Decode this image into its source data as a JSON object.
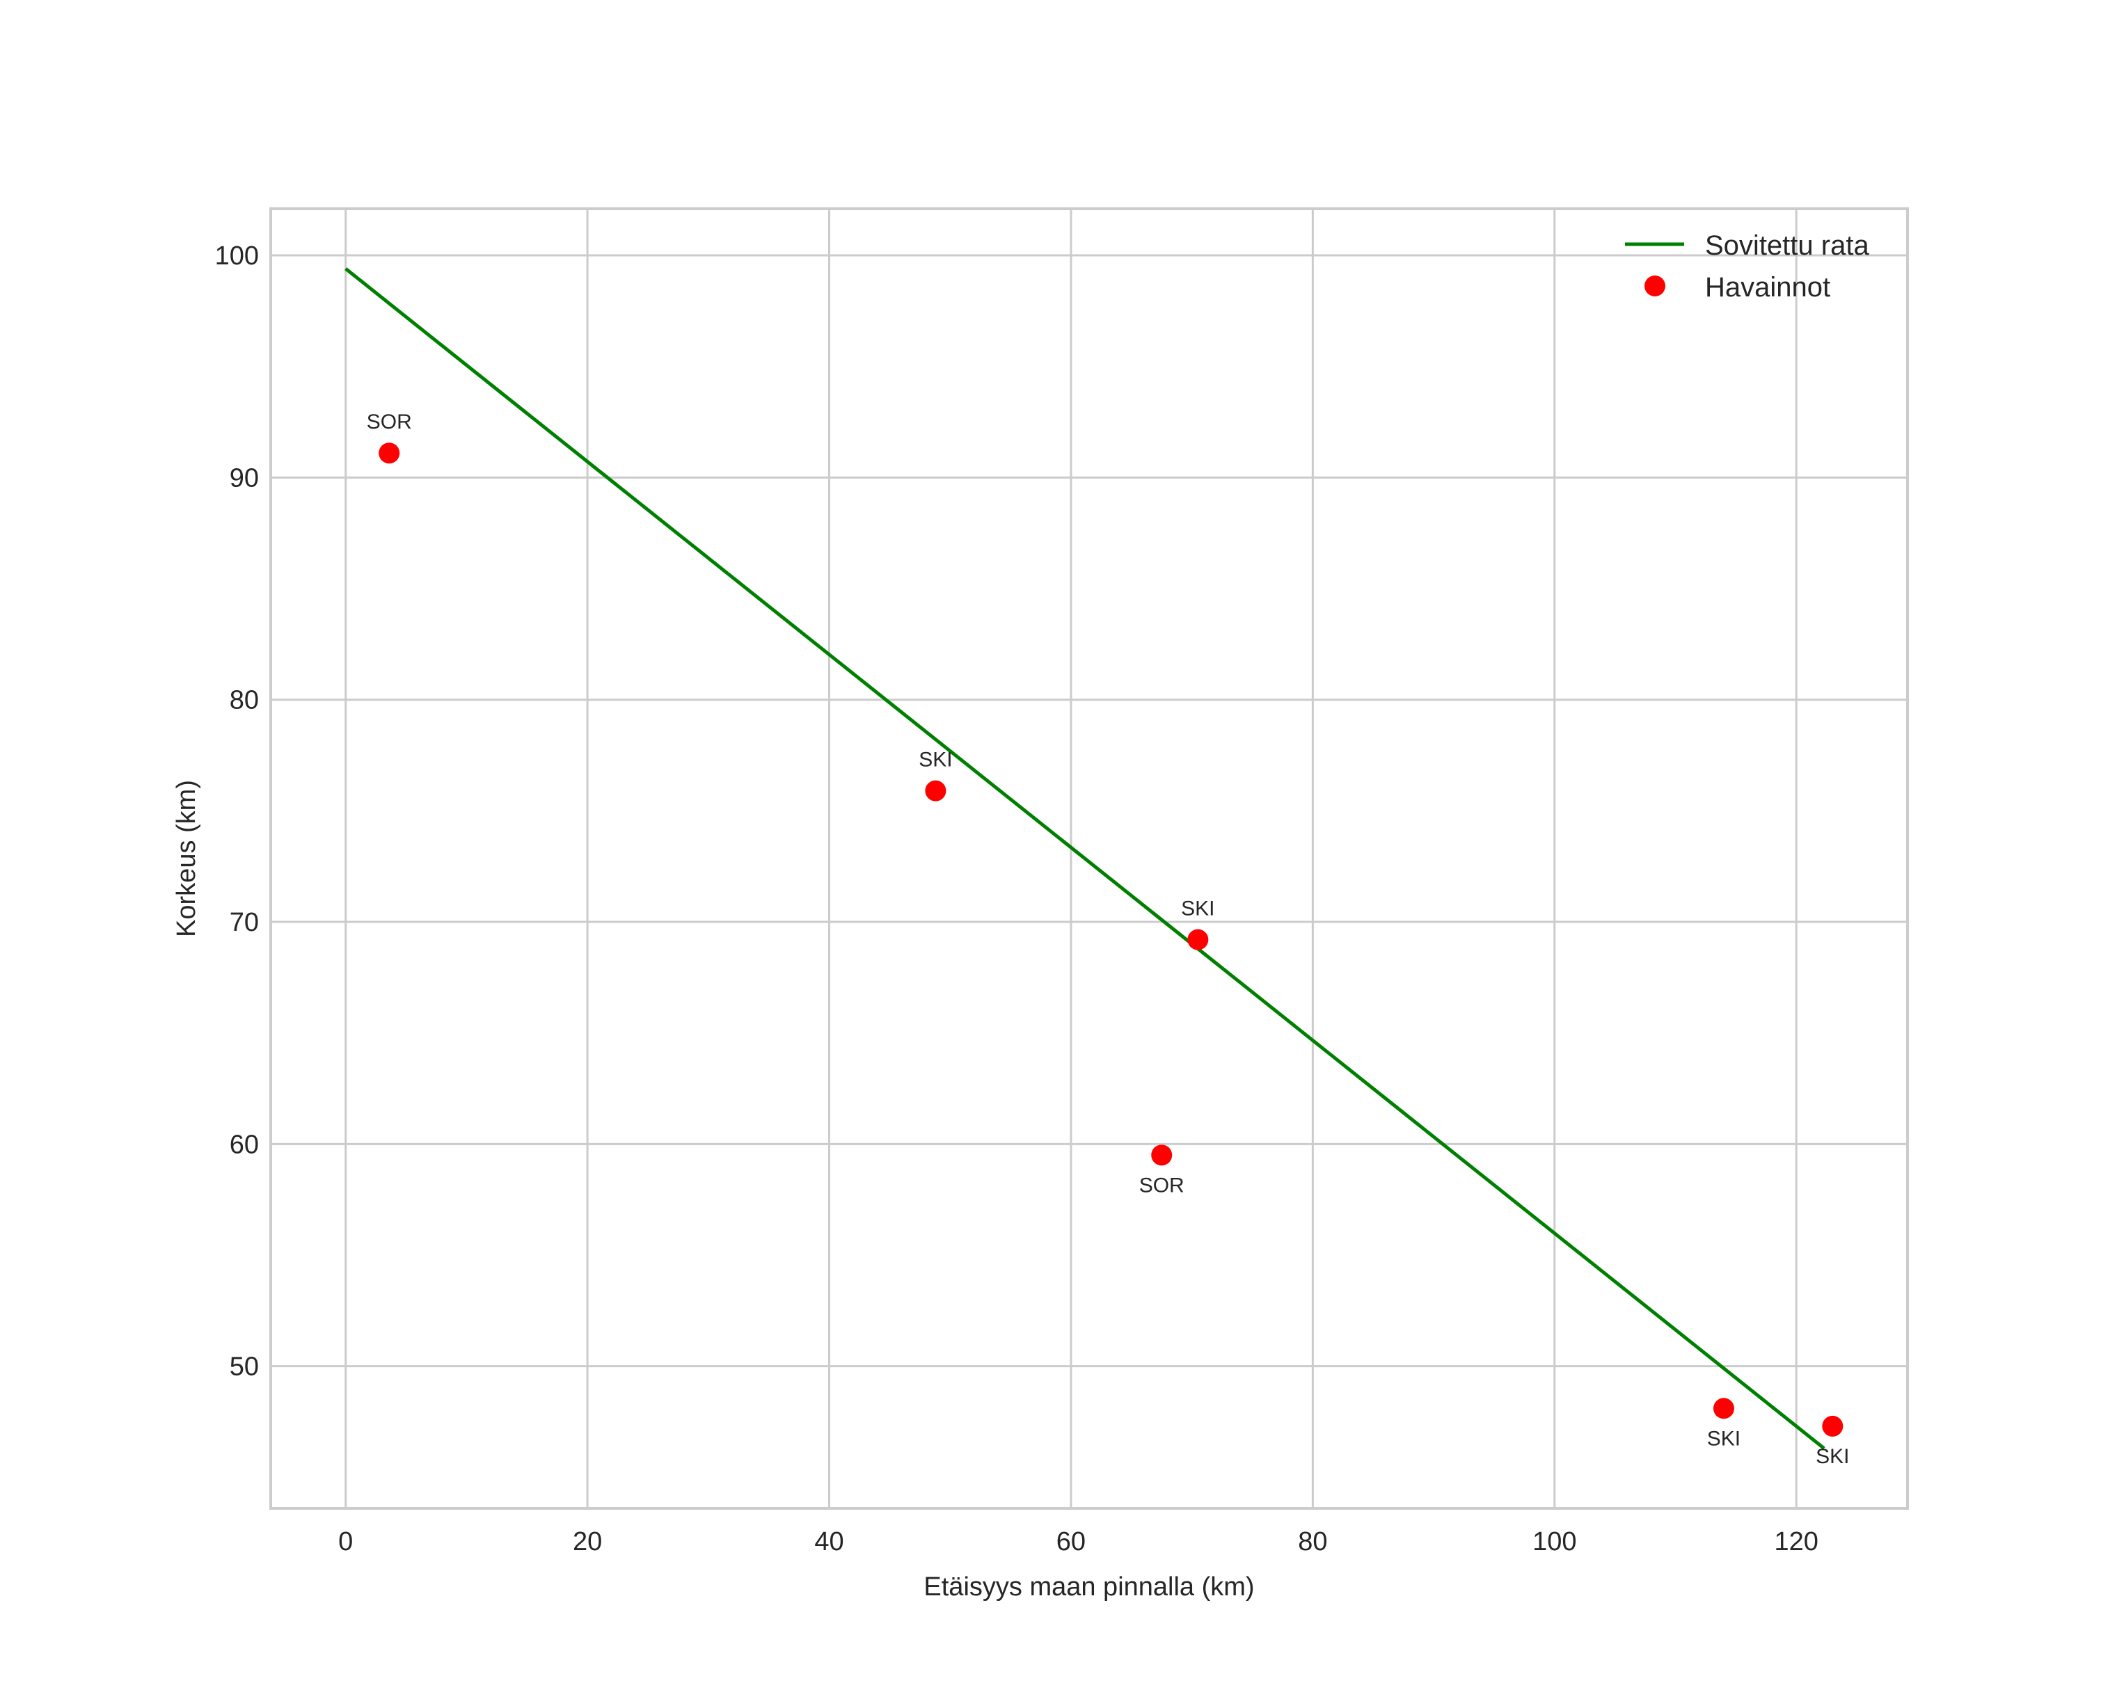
{
  "chart_data": {
    "type": "scatter",
    "title": "",
    "xlabel": "Etäisyys maan pinnalla (km)",
    "ylabel": "Korkeus (km)",
    "xlim": [
      -6.2,
      129.2
    ],
    "ylim": [
      43.6,
      102.1
    ],
    "x_ticks": [
      0,
      20,
      40,
      60,
      80,
      100,
      120
    ],
    "y_ticks": [
      50,
      60,
      70,
      80,
      90,
      100
    ],
    "grid": true,
    "legend_position": "upper right",
    "series": [
      {
        "name": "Sovitettu rata",
        "kind": "line",
        "color": "#008000",
        "x": [
          0,
          122.3
        ],
        "y": [
          99.4,
          46.3
        ]
      },
      {
        "name": "Havainnot",
        "kind": "scatter",
        "color": "#ff0000",
        "points": [
          {
            "x": 3.6,
            "y": 91.1,
            "label": "SOR",
            "label_pos": "above"
          },
          {
            "x": 48.8,
            "y": 75.9,
            "label": "SKI",
            "label_pos": "above"
          },
          {
            "x": 70.5,
            "y": 69.2,
            "label": "SKI",
            "label_pos": "above"
          },
          {
            "x": 67.5,
            "y": 59.5,
            "label": "SOR",
            "label_pos": "below"
          },
          {
            "x": 114.0,
            "y": 48.1,
            "label": "SKI",
            "label_pos": "below"
          },
          {
            "x": 123.0,
            "y": 47.3,
            "label": "SKI",
            "label_pos": "below"
          }
        ]
      }
    ]
  },
  "legend": {
    "items": [
      {
        "label": "Sovitettu rata",
        "marker": "line",
        "color": "#008000"
      },
      {
        "label": "Havainnot",
        "marker": "circle",
        "color": "#ff0000"
      }
    ]
  },
  "style": {
    "grid_color": "#cccccc",
    "frame_color": "#cccccc",
    "text_color": "#262626"
  }
}
